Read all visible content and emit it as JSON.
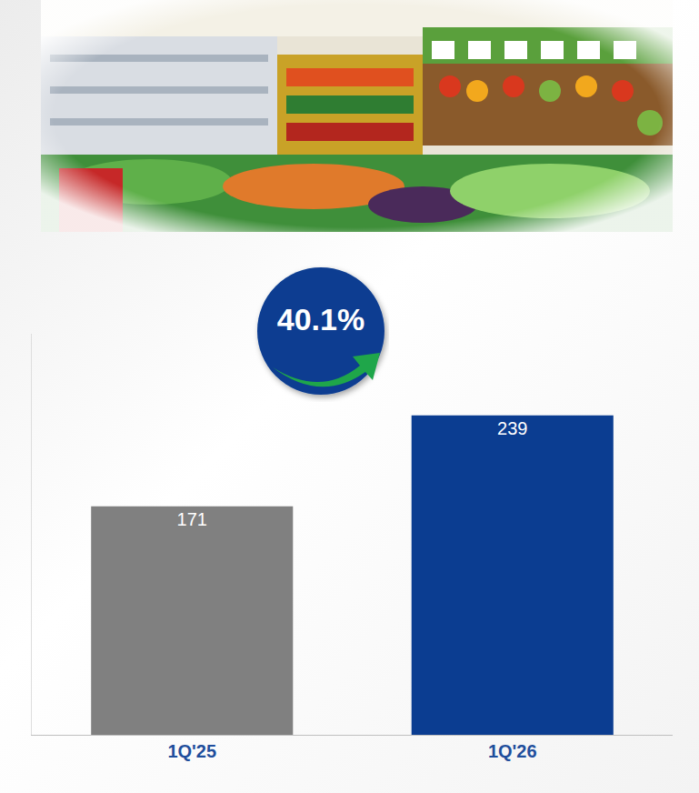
{
  "chart_data": {
    "type": "bar",
    "categories": [
      "1Q'25",
      "1Q'26"
    ],
    "values": [
      171,
      239
    ],
    "colors": [
      "#808080",
      "#0b3d91"
    ],
    "ylim": [
      0,
      300
    ],
    "data_labels": true,
    "tick_labels": "x",
    "grid": false,
    "annotations": [
      "40.1%"
    ]
  }
}
